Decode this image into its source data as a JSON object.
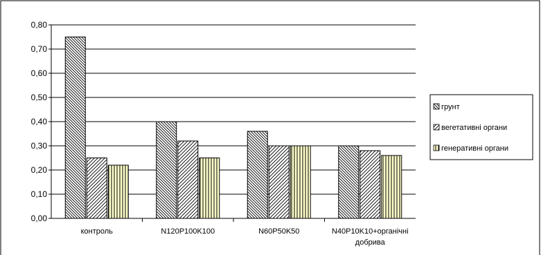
{
  "chart_data": {
    "type": "bar",
    "categories": [
      "контроль",
      "N120P100K100",
      "N60P50K50",
      [
        "N40P10K10+органічні",
        "добрива"
      ]
    ],
    "series": [
      {
        "name": "грунт",
        "values": [
          0.75,
          0.4,
          0.36,
          0.3
        ],
        "pattern": "hatch-back",
        "color": "#ffffff"
      },
      {
        "name": "вегетативні органи",
        "values": [
          0.25,
          0.32,
          0.3,
          0.28
        ],
        "pattern": "hatch-forward",
        "color": "#ffffff"
      },
      {
        "name": "генеративні органи",
        "values": [
          0.22,
          0.25,
          0.3,
          0.26
        ],
        "pattern": "vertical",
        "color": "#ffffcc"
      }
    ],
    "yticks": [
      "0,00",
      "0,10",
      "0,20",
      "0,30",
      "0,40",
      "0,50",
      "0,60",
      "0,70",
      "0,80"
    ],
    "ylim": [
      0,
      0.8
    ],
    "grid": true,
    "legend": "right"
  }
}
